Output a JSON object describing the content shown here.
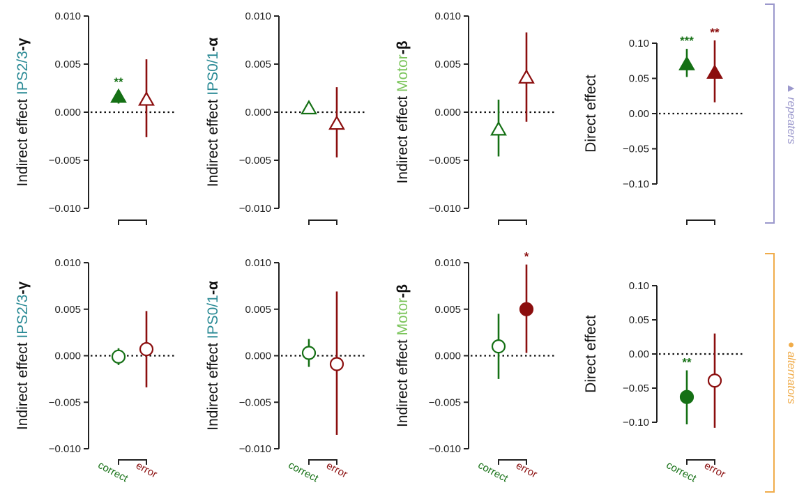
{
  "colors": {
    "correct": "#157015",
    "error": "#8b0e0e",
    "ips": "#2a8a95",
    "motor": "#7ac45a",
    "repeaters": "#9b98cc",
    "alternators": "#f0ac4a",
    "axis": "#222222"
  },
  "x_categories": [
    "correct",
    "error"
  ],
  "groups": {
    "repeaters": "▲ repeaters",
    "alternators": "● alternators"
  },
  "chart_data": [
    {
      "type": "scatter",
      "row": 0,
      "col": 0,
      "marker": "triangle",
      "ylabel": {
        "prefix": "Indirect effect ",
        "area": "IPS2/3",
        "band": "-γ",
        "area_color": "ips"
      },
      "ylim": [
        -0.01,
        0.01
      ],
      "yticks": [
        "0.010",
        "0.005",
        "0.000",
        "−0.005",
        "−0.010"
      ],
      "tick_values": [
        0.01,
        0.005,
        0.0,
        -0.005,
        -0.01
      ],
      "points": [
        {
          "category": "correct",
          "value": 0.0016,
          "ci": [
            0.0009,
            0.0023
          ],
          "filled": true,
          "sig": "**"
        },
        {
          "category": "error",
          "value": 0.0013,
          "ci": [
            -0.0026,
            0.0055
          ],
          "filled": false,
          "sig": ""
        }
      ]
    },
    {
      "type": "scatter",
      "row": 0,
      "col": 1,
      "marker": "triangle",
      "ylabel": {
        "prefix": "Indirect effect ",
        "area": "IPS0/1",
        "band": "-α",
        "area_color": "ips"
      },
      "ylim": [
        -0.01,
        0.01
      ],
      "yticks": [
        "0.010",
        "0.005",
        "0.000",
        "−0.005",
        "−0.010"
      ],
      "tick_values": [
        0.01,
        0.005,
        0.0,
        -0.005,
        -0.01
      ],
      "points": [
        {
          "category": "correct",
          "value": 0.0004,
          "ci": [
            0.0001,
            0.0007
          ],
          "filled": false,
          "sig": ""
        },
        {
          "category": "error",
          "value": -0.0012,
          "ci": [
            -0.0047,
            0.0026
          ],
          "filled": false,
          "sig": ""
        }
      ]
    },
    {
      "type": "scatter",
      "row": 0,
      "col": 2,
      "marker": "triangle",
      "ylabel": {
        "prefix": "Indirect effect ",
        "area": "Motor",
        "band": "-β",
        "area_color": "motor"
      },
      "ylim": [
        -0.01,
        0.01
      ],
      "yticks": [
        "0.010",
        "0.005",
        "0.000",
        "−0.005",
        "−0.010"
      ],
      "tick_values": [
        0.01,
        0.005,
        0.0,
        -0.005,
        -0.01
      ],
      "points": [
        {
          "category": "correct",
          "value": -0.0018,
          "ci": [
            -0.0046,
            0.0013
          ],
          "filled": false,
          "sig": ""
        },
        {
          "category": "error",
          "value": 0.0036,
          "ci": [
            -0.001,
            0.0083
          ],
          "filled": false,
          "sig": ""
        }
      ]
    },
    {
      "type": "scatter",
      "row": 0,
      "col": 3,
      "marker": "triangle",
      "ylabel": {
        "prefix": "Direct effect",
        "area": "",
        "band": "",
        "area_color": "ips"
      },
      "ylim": [
        -0.13,
        0.13
      ],
      "yticks": [
        "0.10",
        "0.05",
        "0.00",
        "−0.05",
        "−0.10"
      ],
      "tick_values": [
        0.1,
        0.05,
        0.0,
        -0.05,
        -0.1
      ],
      "points": [
        {
          "category": "correct",
          "value": 0.07,
          "ci": [
            0.052,
            0.092
          ],
          "filled": true,
          "sig": "***"
        },
        {
          "category": "error",
          "value": 0.058,
          "ci": [
            0.016,
            0.104
          ],
          "filled": true,
          "sig": "**"
        }
      ]
    },
    {
      "type": "scatter",
      "row": 1,
      "col": 0,
      "marker": "circle",
      "ylabel": {
        "prefix": "Indirect effect ",
        "area": "IPS2/3",
        "band": "-γ",
        "area_color": "ips"
      },
      "ylim": [
        -0.01,
        0.01
      ],
      "yticks": [
        "0.010",
        "0.005",
        "0.000",
        "−0.005",
        "−0.010"
      ],
      "tick_values": [
        0.01,
        0.005,
        0.0,
        -0.005,
        -0.01
      ],
      "points": [
        {
          "category": "correct",
          "value": -0.0001,
          "ci": [
            -0.001,
            0.0008
          ],
          "filled": false,
          "sig": ""
        },
        {
          "category": "error",
          "value": 0.0007,
          "ci": [
            -0.0034,
            0.0048
          ],
          "filled": false,
          "sig": ""
        }
      ]
    },
    {
      "type": "scatter",
      "row": 1,
      "col": 1,
      "marker": "circle",
      "ylabel": {
        "prefix": "Indirect effect ",
        "area": "IPS0/1",
        "band": "-α",
        "area_color": "ips"
      },
      "ylim": [
        -0.01,
        0.01
      ],
      "yticks": [
        "0.010",
        "0.005",
        "0.000",
        "−0.005",
        "−0.010"
      ],
      "tick_values": [
        0.01,
        0.005,
        0.0,
        -0.005,
        -0.01
      ],
      "points": [
        {
          "category": "correct",
          "value": 0.0003,
          "ci": [
            -0.0012,
            0.0018
          ],
          "filled": false,
          "sig": ""
        },
        {
          "category": "error",
          "value": -0.0009,
          "ci": [
            -0.0085,
            0.0069
          ],
          "filled": false,
          "sig": ""
        }
      ]
    },
    {
      "type": "scatter",
      "row": 1,
      "col": 2,
      "marker": "circle",
      "ylabel": {
        "prefix": "Indirect effect ",
        "area": "Motor",
        "band": "-β",
        "area_color": "motor"
      },
      "ylim": [
        -0.01,
        0.01
      ],
      "yticks": [
        "0.010",
        "0.005",
        "0.000",
        "−0.005",
        "−0.010"
      ],
      "tick_values": [
        0.01,
        0.005,
        0.0,
        -0.005,
        -0.01
      ],
      "points": [
        {
          "category": "correct",
          "value": 0.001,
          "ci": [
            -0.0025,
            0.0045
          ],
          "filled": false,
          "sig": ""
        },
        {
          "category": "error",
          "value": 0.005,
          "ci": [
            0.0003,
            0.0098
          ],
          "filled": true,
          "sig": "*"
        }
      ]
    },
    {
      "type": "scatter",
      "row": 1,
      "col": 3,
      "marker": "circle",
      "ylabel": {
        "prefix": "Direct effect",
        "area": "",
        "band": "",
        "area_color": "ips"
      },
      "ylim": [
        -0.13,
        0.13
      ],
      "yticks": [
        "0.10",
        "0.05",
        "0.00",
        "−0.05",
        "−0.10"
      ],
      "tick_values": [
        0.1,
        0.05,
        0.0,
        -0.05,
        -0.1
      ],
      "points": [
        {
          "category": "correct",
          "value": -0.063,
          "ci": [
            -0.103,
            -0.024
          ],
          "filled": true,
          "sig": "**"
        },
        {
          "category": "error",
          "value": -0.039,
          "ci": [
            -0.108,
            0.03
          ],
          "filled": false,
          "sig": ""
        }
      ]
    }
  ]
}
